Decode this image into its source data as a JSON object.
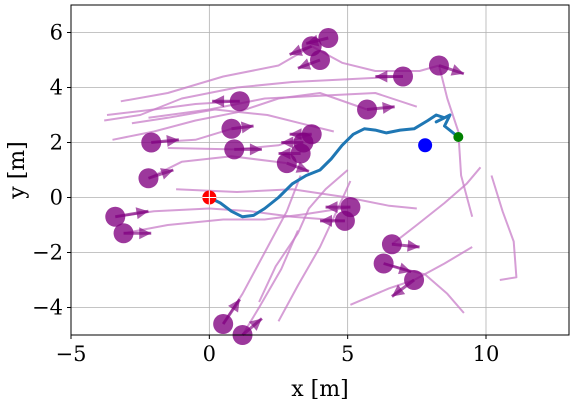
{
  "chart_data": {
    "type": "scatter",
    "title": "",
    "xlabel": "x [m]",
    "ylabel": "y [m]",
    "xlim": [
      -5,
      13
    ],
    "ylim": [
      -5,
      7
    ],
    "xticks": [
      -5,
      0,
      5,
      10
    ],
    "yticks": [
      -4,
      -2,
      0,
      2,
      4,
      6
    ],
    "xtick_labels": [
      "−5",
      "0",
      "5",
      "10"
    ],
    "ytick_labels": [
      "−4",
      "−2",
      "0",
      "2",
      "4",
      "6"
    ],
    "grid": true,
    "colors": {
      "robot_path": "#1f77b4",
      "start": "#ff0000",
      "goal": "#008000",
      "robot": "#0000ff",
      "pedestrian": "#800080",
      "pedestrian_trail": "#c87dc8"
    },
    "robot_path": [
      [
        0,
        0
      ],
      [
        0.4,
        -0.2
      ],
      [
        0.8,
        -0.5
      ],
      [
        1.2,
        -0.7
      ],
      [
        1.6,
        -0.65
      ],
      [
        2.0,
        -0.4
      ],
      [
        2.5,
        0.0
      ],
      [
        3.0,
        0.5
      ],
      [
        3.5,
        0.8
      ],
      [
        4.0,
        1.0
      ],
      [
        4.4,
        1.4
      ],
      [
        4.8,
        1.9
      ],
      [
        5.2,
        2.3
      ],
      [
        5.6,
        2.5
      ],
      [
        6.0,
        2.45
      ],
      [
        6.4,
        2.35
      ],
      [
        6.9,
        2.45
      ],
      [
        7.4,
        2.5
      ],
      [
        7.9,
        2.8
      ],
      [
        8.2,
        3.0
      ],
      [
        8.5,
        2.9
      ],
      [
        8.2,
        2.75
      ],
      [
        8.7,
        3.0
      ],
      [
        8.5,
        2.6
      ],
      [
        9.0,
        2.2
      ]
    ],
    "start": [
      0,
      0
    ],
    "goal": [
      9.0,
      2.2
    ],
    "robot": [
      7.8,
      1.9
    ],
    "pedestrians": [
      {
        "x": 4.3,
        "y": 5.8,
        "dx": -0.8,
        "dy": -0.2
      },
      {
        "x": 3.7,
        "y": 5.5,
        "dx": -0.8,
        "dy": -0.3
      },
      {
        "x": 4.0,
        "y": 5.0,
        "dx": -0.8,
        "dy": -0.3
      },
      {
        "x": 8.3,
        "y": 4.8,
        "dx": 0.9,
        "dy": -0.3
      },
      {
        "x": 7.0,
        "y": 4.4,
        "dx": -1.0,
        "dy": 0.0
      },
      {
        "x": 1.1,
        "y": 3.5,
        "dx": -1.0,
        "dy": 0.0
      },
      {
        "x": 5.7,
        "y": 3.2,
        "dx": 1.0,
        "dy": 0.1
      },
      {
        "x": 0.8,
        "y": 2.5,
        "dx": 0.8,
        "dy": 0.1
      },
      {
        "x": 3.7,
        "y": 2.3,
        "dx": -0.8,
        "dy": 0.0
      },
      {
        "x": -2.1,
        "y": 2.0,
        "dx": 1.0,
        "dy": 0.1
      },
      {
        "x": 3.4,
        "y": 2.0,
        "dx": -0.8,
        "dy": 0.0
      },
      {
        "x": 0.9,
        "y": 1.75,
        "dx": 1.0,
        "dy": 0.0
      },
      {
        "x": 3.3,
        "y": 1.6,
        "dx": -0.8,
        "dy": 0.0
      },
      {
        "x": 2.8,
        "y": 1.25,
        "dx": 0.8,
        "dy": -0.3
      },
      {
        "x": -2.2,
        "y": 0.7,
        "dx": 0.9,
        "dy": 0.3
      },
      {
        "x": -3.4,
        "y": -0.7,
        "dx": 1.2,
        "dy": 0.2
      },
      {
        "x": 5.1,
        "y": -0.35,
        "dx": -0.9,
        "dy": 0.0
      },
      {
        "x": 4.9,
        "y": -0.85,
        "dx": -0.9,
        "dy": 0.0
      },
      {
        "x": -3.1,
        "y": -1.3,
        "dx": 1.0,
        "dy": 0.0
      },
      {
        "x": 6.6,
        "y": -1.7,
        "dx": 1.0,
        "dy": -0.1
      },
      {
        "x": 6.3,
        "y": -2.4,
        "dx": 1.0,
        "dy": -0.3
      },
      {
        "x": 7.4,
        "y": -3.0,
        "dx": -0.8,
        "dy": -0.6
      },
      {
        "x": 0.5,
        "y": -4.6,
        "dx": 0.6,
        "dy": 0.9
      },
      {
        "x": 1.2,
        "y": -5.0,
        "dx": 0.7,
        "dy": 0.6
      }
    ],
    "pedestrian_trails": [
      [
        [
          -3.8,
          2.8
        ],
        [
          -2.5,
          3.0
        ],
        [
          -1,
          3.6
        ],
        [
          1,
          4.0
        ],
        [
          3,
          4.2
        ],
        [
          5,
          4.3
        ],
        [
          7,
          4.4
        ]
      ],
      [
        [
          -3.7,
          3.0
        ],
        [
          -2,
          3.2
        ],
        [
          -0.5,
          3.4
        ],
        [
          1.1,
          3.5
        ]
      ],
      [
        [
          -3.5,
          2.1
        ],
        [
          -2,
          2.4
        ],
        [
          -0.5,
          2.8
        ],
        [
          1,
          3.1
        ],
        [
          2.5,
          3.6
        ],
        [
          4,
          3.8
        ],
        [
          5.7,
          3.2
        ]
      ],
      [
        [
          -3.2,
          3.5
        ],
        [
          -1.5,
          3.8
        ],
        [
          0.5,
          4.4
        ],
        [
          2.5,
          4.8
        ],
        [
          3.7,
          5.5
        ]
      ],
      [
        [
          -2.2,
          2.9
        ],
        [
          0,
          3.2
        ],
        [
          2,
          3.6
        ],
        [
          4,
          3.7
        ],
        [
          6,
          3.8
        ],
        [
          7.5,
          3.3
        ]
      ],
      [
        [
          -2.1,
          2.0
        ],
        [
          -0.5,
          2.1
        ],
        [
          0.8,
          2.5
        ]
      ],
      [
        [
          -1.5,
          1.8
        ],
        [
          0.9,
          1.75
        ],
        [
          2.5,
          1.9
        ],
        [
          3.7,
          2.3
        ]
      ],
      [
        [
          -2.2,
          0.7
        ],
        [
          -1,
          1.3
        ],
        [
          0.8,
          1.5
        ],
        [
          2.8,
          1.25
        ]
      ],
      [
        [
          -3.4,
          -0.7
        ],
        [
          -2,
          -0.5
        ],
        [
          0,
          -0.4
        ],
        [
          1.5,
          -0.5
        ],
        [
          3,
          -0.7
        ],
        [
          4.9,
          -0.85
        ]
      ],
      [
        [
          -3.1,
          -1.3
        ],
        [
          -1.5,
          -1.0
        ],
        [
          0.5,
          -0.8
        ],
        [
          2,
          -0.8
        ],
        [
          3.5,
          -0.6
        ],
        [
          5.1,
          -0.35
        ]
      ],
      [
        [
          -1.2,
          0.3
        ],
        [
          1,
          0.2
        ],
        [
          3,
          0.3
        ],
        [
          5,
          0.0
        ],
        [
          6.5,
          -0.3
        ],
        [
          7.5,
          -0.4
        ]
      ],
      [
        [
          1.8,
          -3.8
        ],
        [
          2.4,
          -2.5
        ],
        [
          3.2,
          -1.3
        ],
        [
          3.6,
          -0.4
        ],
        [
          4.2,
          0.3
        ],
        [
          5,
          1.0
        ]
      ],
      [
        [
          2.5,
          -4.5
        ],
        [
          3.2,
          -3.2
        ],
        [
          4,
          -1.8
        ],
        [
          4.6,
          -0.5
        ],
        [
          5.1,
          0.6
        ]
      ],
      [
        [
          0.5,
          -4.6
        ],
        [
          1.2,
          -3.5
        ],
        [
          2.0,
          -2.0
        ],
        [
          2.8,
          -0.5
        ],
        [
          3.3,
          0.8
        ]
      ],
      [
        [
          1.2,
          -5.0
        ],
        [
          1.8,
          -4.0
        ],
        [
          2.6,
          -2.6
        ],
        [
          3.2,
          -1.2
        ]
      ],
      [
        [
          5.1,
          -3.9
        ],
        [
          6.5,
          -3.3
        ],
        [
          7.4,
          -3.0
        ],
        [
          8.5,
          -2.4
        ],
        [
          9.5,
          -1.8
        ]
      ],
      [
        [
          6.6,
          -1.7
        ],
        [
          7.5,
          -1.0
        ],
        [
          8.5,
          -0.2
        ],
        [
          9.3,
          0.5
        ],
        [
          9.8,
          1.1
        ]
      ],
      [
        [
          6.3,
          -2.4
        ],
        [
          7.8,
          -2.8
        ],
        [
          8.6,
          -3.5
        ],
        [
          9.2,
          -4.2
        ]
      ],
      [
        [
          10.2,
          0.8
        ],
        [
          10.6,
          -0.5
        ],
        [
          11.0,
          -1.6
        ],
        [
          11.1,
          -2.9
        ],
        [
          10.5,
          -3.0
        ]
      ],
      [
        [
          8.3,
          4.8
        ],
        [
          8.6,
          3.6
        ],
        [
          9.0,
          2.4
        ],
        [
          9.1,
          0.8
        ],
        [
          9.5,
          -0.7
        ]
      ],
      [
        [
          -2.8,
          2.7
        ],
        [
          -1.5,
          2.9
        ],
        [
          0.2,
          3.2
        ],
        [
          2.1,
          3.0
        ],
        [
          3.3,
          2.7
        ],
        [
          4.5,
          2.4
        ]
      ],
      [
        [
          3.7,
          5.5
        ],
        [
          4.8,
          4.9
        ],
        [
          6.0,
          4.6
        ],
        [
          7.6,
          4.6
        ],
        [
          8.3,
          4.8
        ]
      ]
    ]
  }
}
